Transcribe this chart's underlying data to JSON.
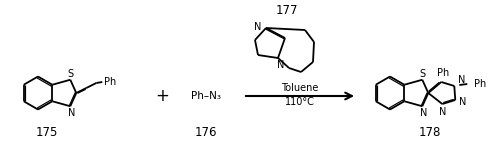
{
  "bg_color": "#ffffff",
  "text_color": "#000000",
  "label_175": "175",
  "label_176": "176",
  "label_177": "177",
  "label_178": "178",
  "figsize": [
    5.0,
    1.58
  ],
  "dpi": 100
}
